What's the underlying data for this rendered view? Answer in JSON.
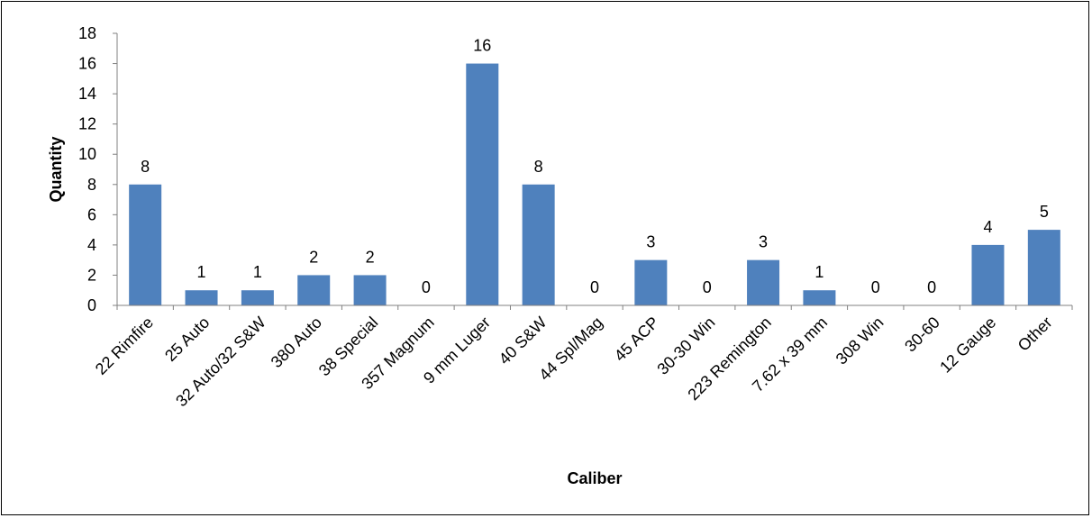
{
  "chart_data": {
    "type": "bar",
    "title": "",
    "xlabel": "Caliber",
    "ylabel": "Quantity",
    "ylim": [
      0,
      18
    ],
    "ytick_step": 2,
    "grid": false,
    "legend": "none",
    "bar_color": "#4F81BD",
    "categories": [
      "22 Rimfire",
      "25 Auto",
      "32 Auto/32 S&W",
      "380 Auto",
      "38 Special",
      "357 Magnum",
      "9 mm Luger",
      "40 S&W",
      "44 Spl/Mag",
      "45 ACP",
      "30-30 Win",
      "223 Remington",
      "7.62 x 39 mm",
      "308 Win",
      "30-60",
      "12 Gauge",
      "Other"
    ],
    "values": [
      8,
      1,
      1,
      2,
      2,
      0,
      16,
      8,
      0,
      3,
      0,
      3,
      1,
      0,
      0,
      4,
      5
    ]
  }
}
